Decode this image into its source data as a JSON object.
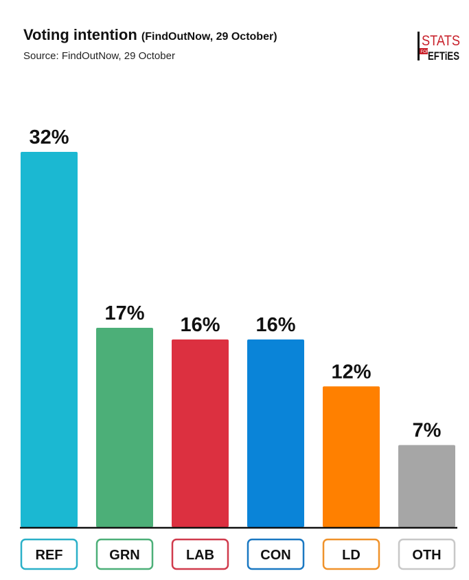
{
  "chart_data": {
    "type": "bar",
    "title": "Voting intention",
    "title_note": "(FindOutNow, 29 October)",
    "subtitle": "Source: FindOutNow, 29 October",
    "categories": [
      "REF",
      "GRN",
      "LAB",
      "CON",
      "LD",
      "OTH"
    ],
    "values": [
      32,
      17,
      16,
      16,
      12,
      7
    ],
    "data_labels": [
      "32%",
      "17%",
      "16%",
      "16%",
      "12%",
      "7%"
    ],
    "colors": [
      "#1bb8d2",
      "#4caf78",
      "#dc3040",
      "#0a84d8",
      "#ff8000",
      "#a6a6a6"
    ],
    "label_border_colors": [
      "#2ab0c8",
      "#4caf78",
      "#d03a4c",
      "#1a78c2",
      "#f0922a",
      "#c8c8c8"
    ],
    "ylim": [
      0,
      32
    ],
    "grid": false,
    "legend": "none"
  },
  "logo": {
    "top": "STATS",
    "small": "FOR",
    "bottom": "LEFTIES"
  }
}
